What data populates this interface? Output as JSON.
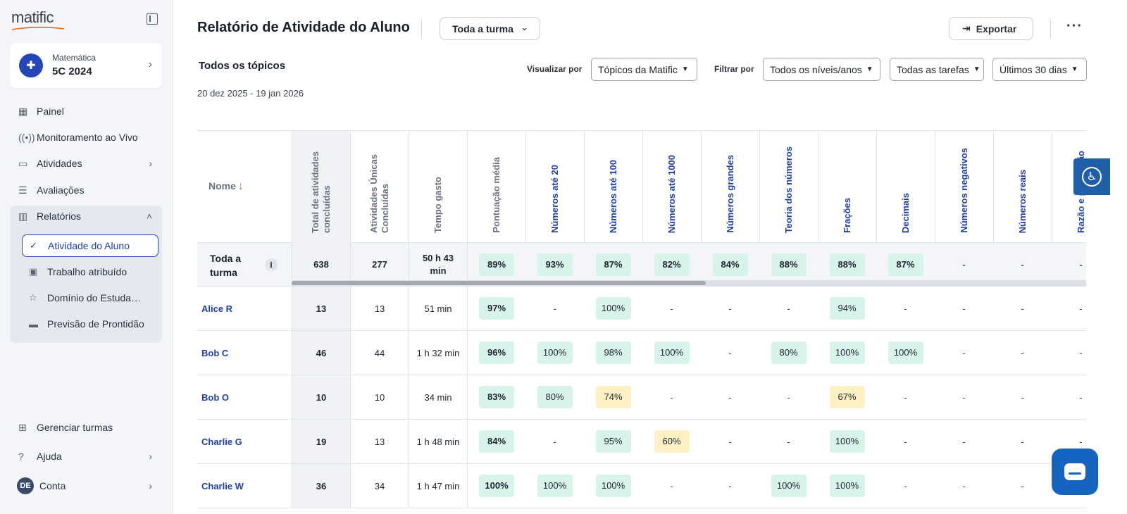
{
  "brand": {
    "logo_text": "matific",
    "accent": "#2446b8",
    "logo_accent": "#e06b1e"
  },
  "class_card": {
    "subject": "Matemática",
    "name": "5C 2024",
    "icon": "grid-plus-icon"
  },
  "nav": {
    "dashboard": "Painel",
    "live": "Monitoramento ao Vivo",
    "activities": "Atividades",
    "assessments": "Avaliações",
    "reports": "Relatórios",
    "reports_sub": {
      "student_activity": "Atividade do Aluno",
      "assigned_work": "Trabalho atribuído",
      "student_mastery": "Domínio do Estuda…",
      "readiness": "Previsão de Prontidão"
    },
    "manage_classes": "Gerenciar turmas",
    "help": "Ajuda",
    "account": "Conta",
    "account_initials": "DE"
  },
  "header": {
    "title": "Relatório de Atividade do Aluno",
    "class_select": "Toda a turma",
    "export_label": "Exportar",
    "more": "···"
  },
  "section": {
    "title": "Todos os tópicos",
    "date_range": "20 dez 2025 - 19 jan 2026"
  },
  "filters": {
    "view_by_label": "Visualizar por",
    "view_by": "Tópicos da Matific",
    "filter_by_label": "Filtrar por",
    "levels": "Todos os níveis/anos",
    "tasks": "Todas as tarefas",
    "period": "Últimos 30 dias"
  },
  "table": {
    "name_header": "Nome",
    "columns": [
      "Total de atividades concluídas",
      "Atividades Únicas Concluídas",
      "Tempo gasto",
      "Pontuação média",
      "Números até 20",
      "Números até 100",
      "Números até 1000",
      "Números grandes",
      "Teoria dos números",
      "Frações",
      "Decimais",
      "Números negativos",
      "Números reais",
      "Razão e proporção"
    ],
    "summary": {
      "name": "Toda a turma",
      "info": "i",
      "cells": [
        "638",
        "277",
        "50 h 43 min",
        "89%",
        "93%",
        "87%",
        "82%",
        "84%",
        "88%",
        "88%",
        "87%",
        "-",
        "-",
        "-"
      ],
      "colors": [
        "",
        "",
        "",
        "green",
        "green",
        "green",
        "green",
        "green",
        "green",
        "green",
        "green",
        "",
        "",
        ""
      ]
    },
    "rows": [
      {
        "name": "Alice R",
        "cells": [
          "13",
          "13",
          "51 min",
          "97%",
          "-",
          "100%",
          "-",
          "-",
          "-",
          "94%",
          "-",
          "-",
          "-",
          "-"
        ],
        "colors": [
          "",
          "",
          "",
          "green",
          "",
          "green",
          "",
          "",
          "",
          "green",
          "",
          "",
          "",
          ""
        ]
      },
      {
        "name": "Bob C",
        "cells": [
          "46",
          "44",
          "1 h 32 min",
          "96%",
          "100%",
          "98%",
          "100%",
          "-",
          "80%",
          "100%",
          "100%",
          "-",
          "-",
          "-"
        ],
        "colors": [
          "",
          "",
          "",
          "green",
          "green",
          "green",
          "green",
          "",
          "green",
          "green",
          "green",
          "",
          "",
          ""
        ]
      },
      {
        "name": "Bob O",
        "cells": [
          "10",
          "10",
          "34 min",
          "83%",
          "80%",
          "74%",
          "-",
          "-",
          "-",
          "67%",
          "-",
          "-",
          "-",
          "-"
        ],
        "colors": [
          "",
          "",
          "",
          "green",
          "green",
          "yellow",
          "",
          "",
          "",
          "yellow",
          "",
          "",
          "",
          ""
        ]
      },
      {
        "name": "Charlie G",
        "cells": [
          "19",
          "13",
          "1 h 48 min",
          "84%",
          "-",
          "95%",
          "60%",
          "-",
          "-",
          "100%",
          "-",
          "-",
          "-",
          "-"
        ],
        "colors": [
          "",
          "",
          "",
          "green",
          "",
          "green",
          "yellow",
          "",
          "",
          "green",
          "",
          "",
          "",
          ""
        ]
      },
      {
        "name": "Charlie W",
        "cells": [
          "36",
          "34",
          "1 h 47 min",
          "100%",
          "100%",
          "100%",
          "-",
          "-",
          "100%",
          "100%",
          "-",
          "-",
          "-",
          "-"
        ],
        "colors": [
          "",
          "",
          "",
          "green",
          "green",
          "green",
          "",
          "",
          "green",
          "green",
          "",
          "",
          "",
          ""
        ]
      }
    ]
  },
  "widgets": {
    "accessibility_icon": "accessibility-icon",
    "chat_icon": "chat-icon"
  }
}
